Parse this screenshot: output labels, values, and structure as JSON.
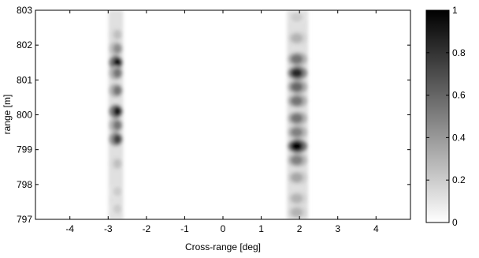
{
  "chart_data": {
    "type": "heatmap",
    "title": "",
    "xlabel": "Cross-range [deg]",
    "ylabel": "range [m]",
    "xlim": [
      -4.9,
      4.9
    ],
    "ylim": [
      797,
      803
    ],
    "xticks": [
      -4,
      -3,
      -2,
      -1,
      0,
      1,
      2,
      3,
      4
    ],
    "yticks": [
      797,
      798,
      799,
      800,
      801,
      802,
      803
    ],
    "colorbar": {
      "range": [
        0,
        1
      ],
      "ticks": [
        0,
        0.2,
        0.4,
        0.6,
        0.8,
        1
      ],
      "tick_labels": [
        "0",
        "0.2",
        "0.4",
        "0.6",
        "0.8",
        "1"
      ],
      "colormap": "gray-reversed",
      "low_color": "#ffffff",
      "high_color": "#000000"
    },
    "grid": false,
    "stripes": [
      {
        "center_deg": -2.8,
        "width_deg": 0.35,
        "range_extent": [
          797,
          803
        ],
        "peaks": [
          {
            "range": 802.3,
            "value": 0.25
          },
          {
            "range": 801.9,
            "value": 0.45
          },
          {
            "range": 801.5,
            "value": 0.95
          },
          {
            "range": 801.2,
            "value": 0.55
          },
          {
            "range": 800.7,
            "value": 0.55
          },
          {
            "range": 800.1,
            "value": 0.9
          },
          {
            "range": 799.7,
            "value": 0.55
          },
          {
            "range": 799.3,
            "value": 0.75
          },
          {
            "range": 798.6,
            "value": 0.25
          },
          {
            "range": 797.8,
            "value": 0.2
          },
          {
            "range": 797.3,
            "value": 0.2
          }
        ]
      },
      {
        "center_deg": 1.95,
        "width_deg": 0.5,
        "range_extent": [
          797,
          803
        ],
        "peaks": [
          {
            "range": 802.8,
            "value": 0.2
          },
          {
            "range": 802.2,
            "value": 0.3
          },
          {
            "range": 801.6,
            "value": 0.55
          },
          {
            "range": 801.2,
            "value": 0.85
          },
          {
            "range": 800.8,
            "value": 0.6
          },
          {
            "range": 800.4,
            "value": 0.55
          },
          {
            "range": 799.9,
            "value": 0.55
          },
          {
            "range": 799.5,
            "value": 0.5
          },
          {
            "range": 799.1,
            "value": 1.0
          },
          {
            "range": 798.7,
            "value": 0.5
          },
          {
            "range": 798.2,
            "value": 0.35
          },
          {
            "range": 797.6,
            "value": 0.3
          },
          {
            "range": 797.2,
            "value": 0.3
          }
        ]
      }
    ]
  }
}
